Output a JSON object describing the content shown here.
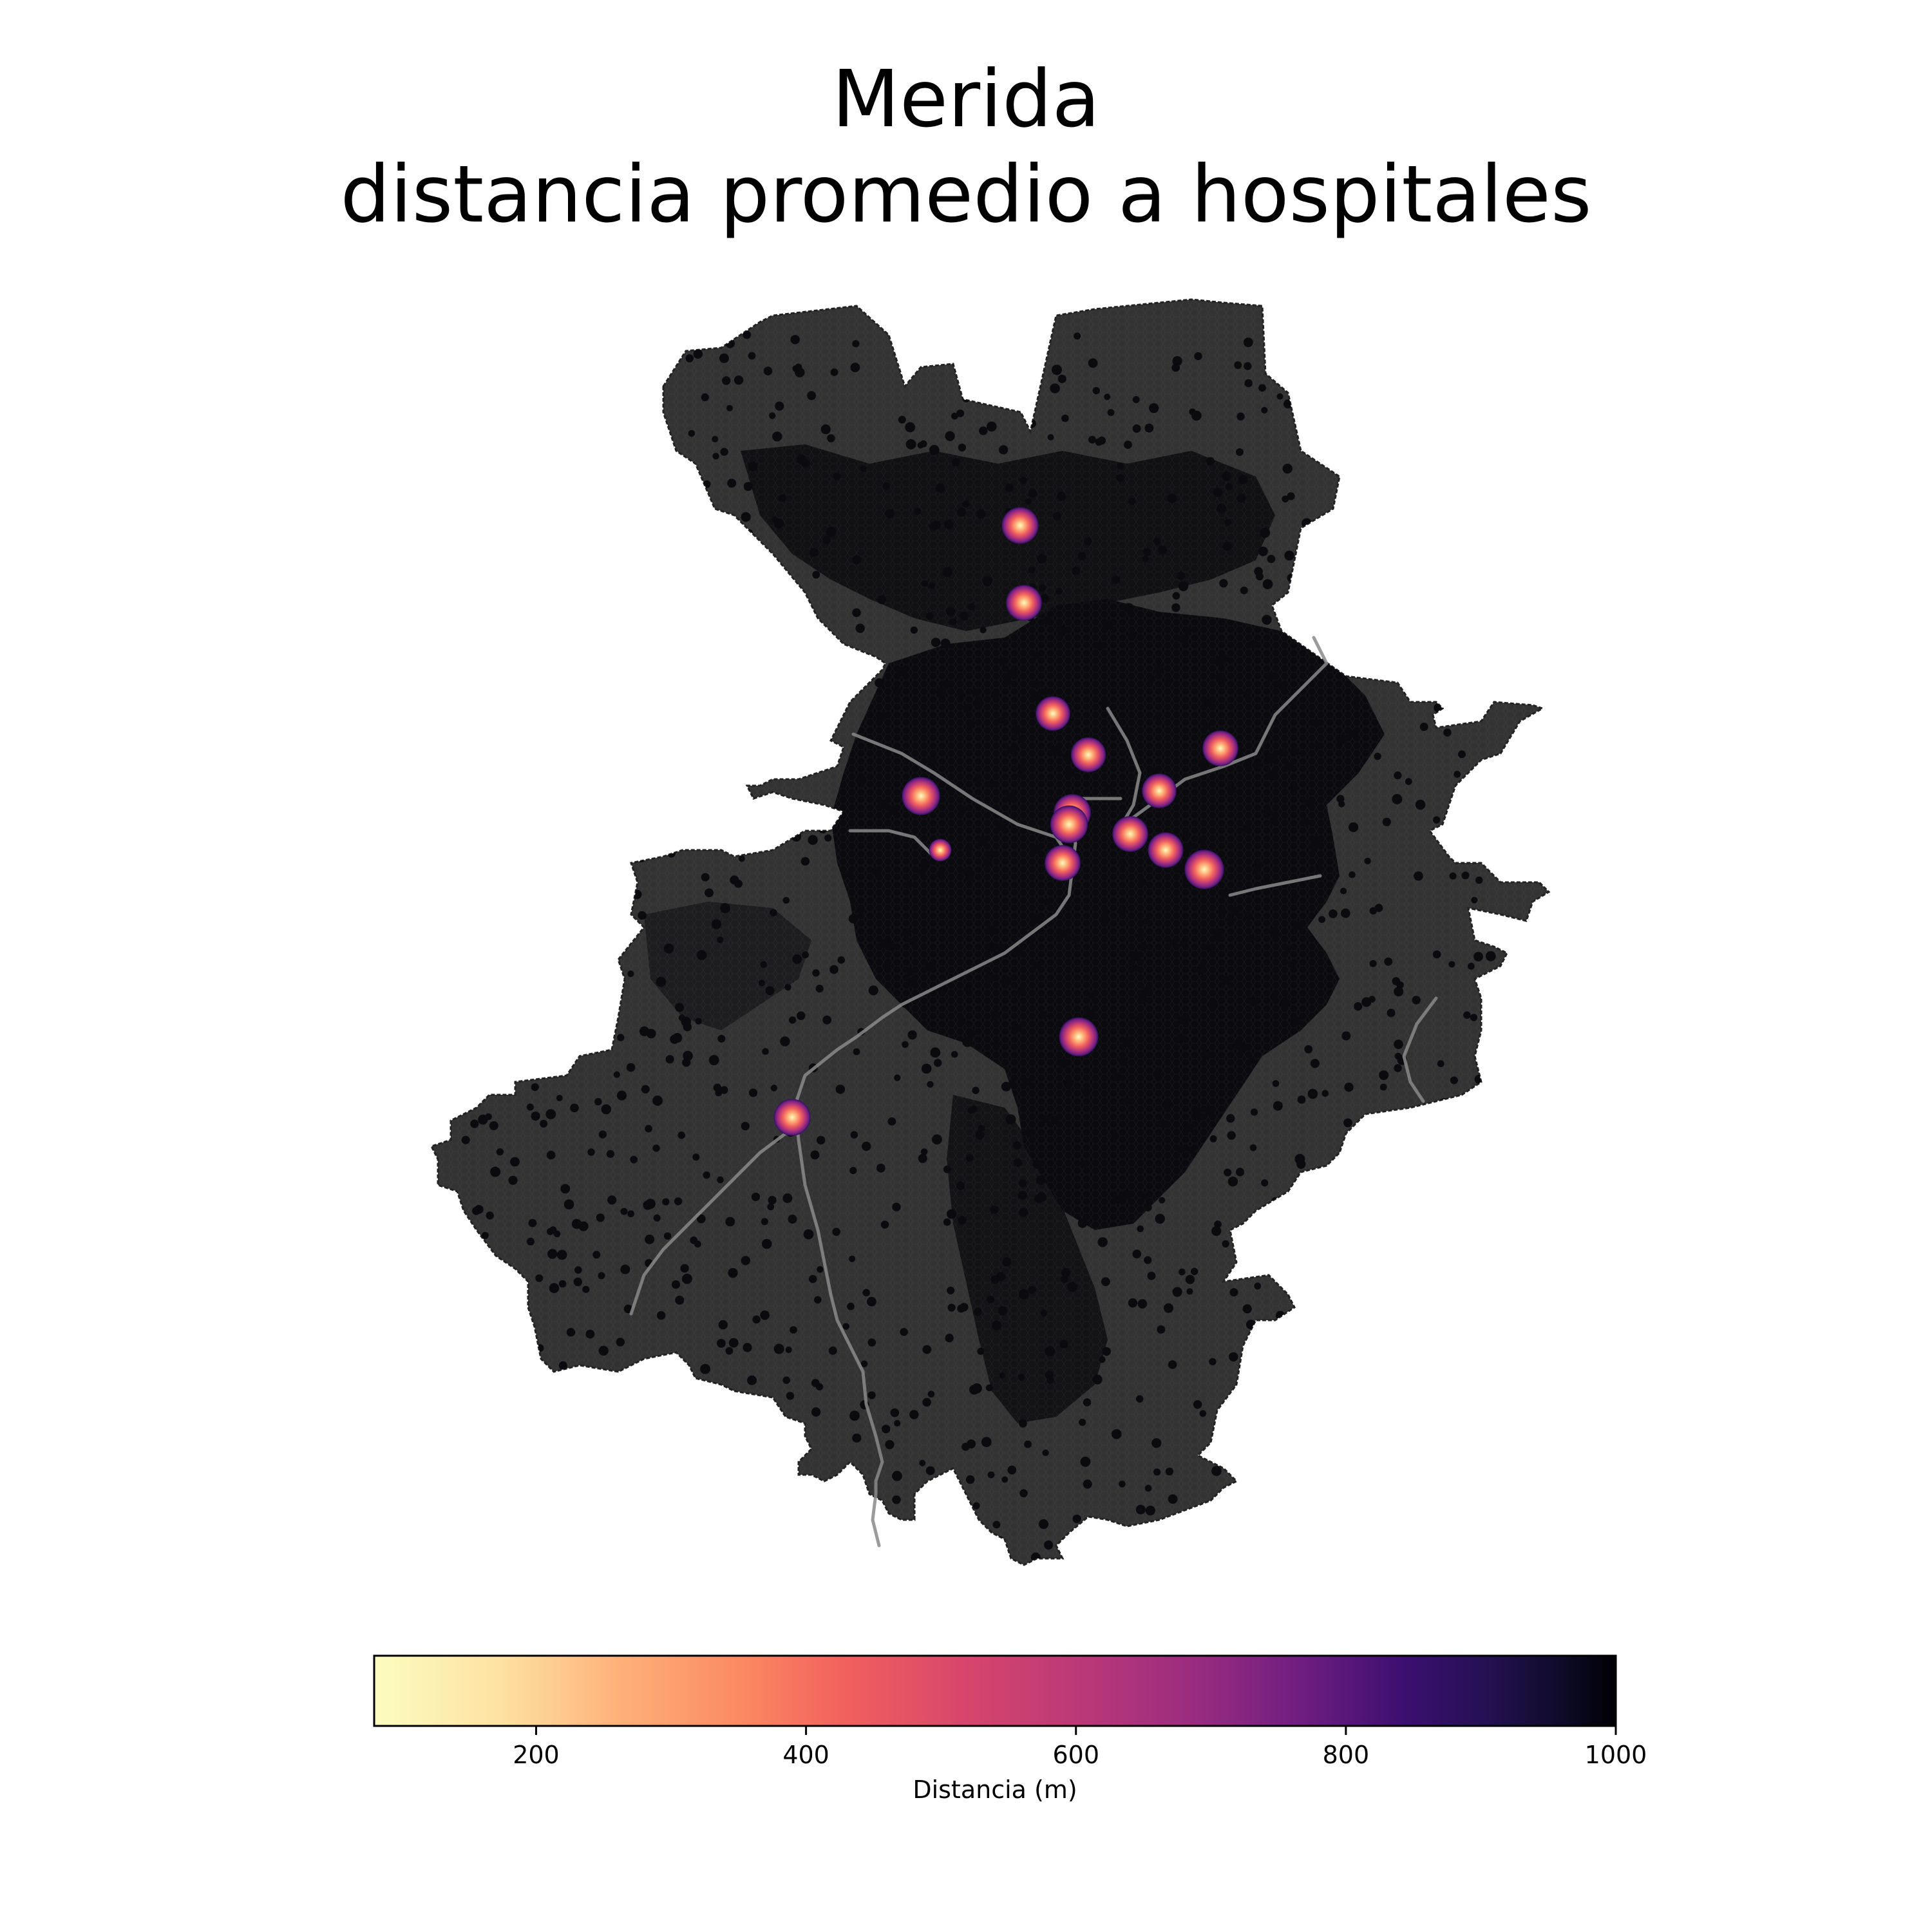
{
  "title": {
    "line1": "Merida",
    "line2": "distancia promedio a hospitales"
  },
  "map": {
    "background_color": "#ffffff",
    "land_color": "#333333",
    "dense_color": "#0b0b0f",
    "road_color": "#8a8a8a",
    "hospitals": [
      {
        "name": "hospital-1",
        "min_distance_m": 180
      },
      {
        "name": "hospital-2",
        "min_distance_m": 200
      },
      {
        "name": "hospital-3",
        "min_distance_m": 230
      },
      {
        "name": "hospital-4",
        "min_distance_m": 220
      },
      {
        "name": "hospital-5",
        "min_distance_m": 200
      },
      {
        "name": "hospital-6",
        "min_distance_m": 230
      },
      {
        "name": "hospital-7",
        "min_distance_m": 150
      },
      {
        "name": "hospital-8",
        "min_distance_m": 170
      },
      {
        "name": "hospital-9",
        "min_distance_m": 160
      },
      {
        "name": "hospital-10",
        "min_distance_m": 200
      },
      {
        "name": "hospital-11",
        "min_distance_m": 210
      },
      {
        "name": "hospital-12",
        "min_distance_m": 200
      },
      {
        "name": "hospital-13",
        "min_distance_m": 120
      },
      {
        "name": "hospital-14",
        "min_distance_m": 500
      },
      {
        "name": "hospital-15",
        "min_distance_m": 130
      },
      {
        "name": "hospital-16",
        "min_distance_m": 180
      }
    ]
  },
  "colorbar": {
    "label": "Distancia (m)",
    "colormap": "magma_r",
    "min": 80,
    "max": 1000,
    "ticks": [
      200,
      400,
      600,
      800,
      1000
    ],
    "tick_labels": [
      "200",
      "400",
      "600",
      "800",
      "1000"
    ],
    "orientation": "horizontal"
  }
}
